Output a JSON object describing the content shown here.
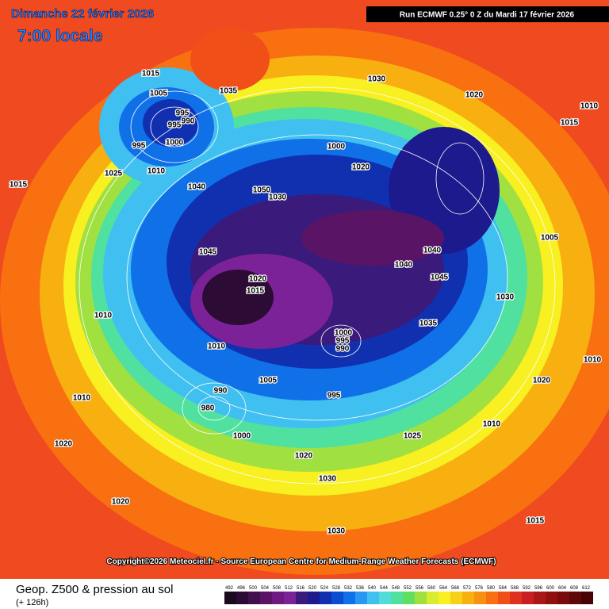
{
  "header": {
    "date": "Dimanche 22 février 2026",
    "time": "7:00 locale",
    "run": "Run ECMWF 0.25° 0 Z du Mardi 17 février 2026"
  },
  "map": {
    "isobar_labels": [
      "1015",
      "1005",
      "995",
      "990",
      "995",
      "1000",
      "995",
      "1035",
      "1030",
      "1020",
      "1010",
      "1015",
      "1025",
      "1010",
      "1040",
      "1050",
      "1030",
      "1000",
      "1020",
      "1045",
      "1040",
      "1045",
      "1040",
      "1020",
      "1015",
      "1035",
      "1000",
      "995",
      "990",
      "1010",
      "1005",
      "995",
      "990",
      "980",
      "1000",
      "1025",
      "1020",
      "1030",
      "1030",
      "1015",
      "1020",
      "1020",
      "1010",
      "1010",
      "1015",
      "1005",
      "1030",
      "1010",
      "1020",
      "1010"
    ]
  },
  "copyright": "Copyright©2026 Meteociel.fr - Source European Centre for Medium-Range Weather Forecasts (ECMWF)",
  "footer": {
    "title": "Geop. Z500 & pression au sol",
    "subtitle": "(+ 126h)"
  },
  "colorbar": {
    "ticks": [
      492,
      496,
      500,
      504,
      508,
      512,
      516,
      520,
      524,
      528,
      532,
      536,
      540,
      544,
      548,
      552,
      556,
      560,
      564,
      568,
      572,
      576,
      580,
      584,
      588,
      592,
      596,
      600,
      604,
      608,
      612
    ],
    "colors": [
      "#1a0a1e",
      "#2c0c34",
      "#41104d",
      "#5a1466",
      "#6f1a80",
      "#7c2298",
      "#3a1a7a",
      "#1c1a8c",
      "#1030b0",
      "#0a4ed0",
      "#1070e8",
      "#2a98f0",
      "#40c0f0",
      "#50dcd8",
      "#50e0a0",
      "#60e060",
      "#a0e040",
      "#d8ec30",
      "#f8f020",
      "#f8d018",
      "#f8b010",
      "#f89010",
      "#f87010",
      "#f05018",
      "#e03020",
      "#c82020",
      "#a81818",
      "#901010",
      "#780c0c",
      "#600808",
      "#480404"
    ]
  }
}
